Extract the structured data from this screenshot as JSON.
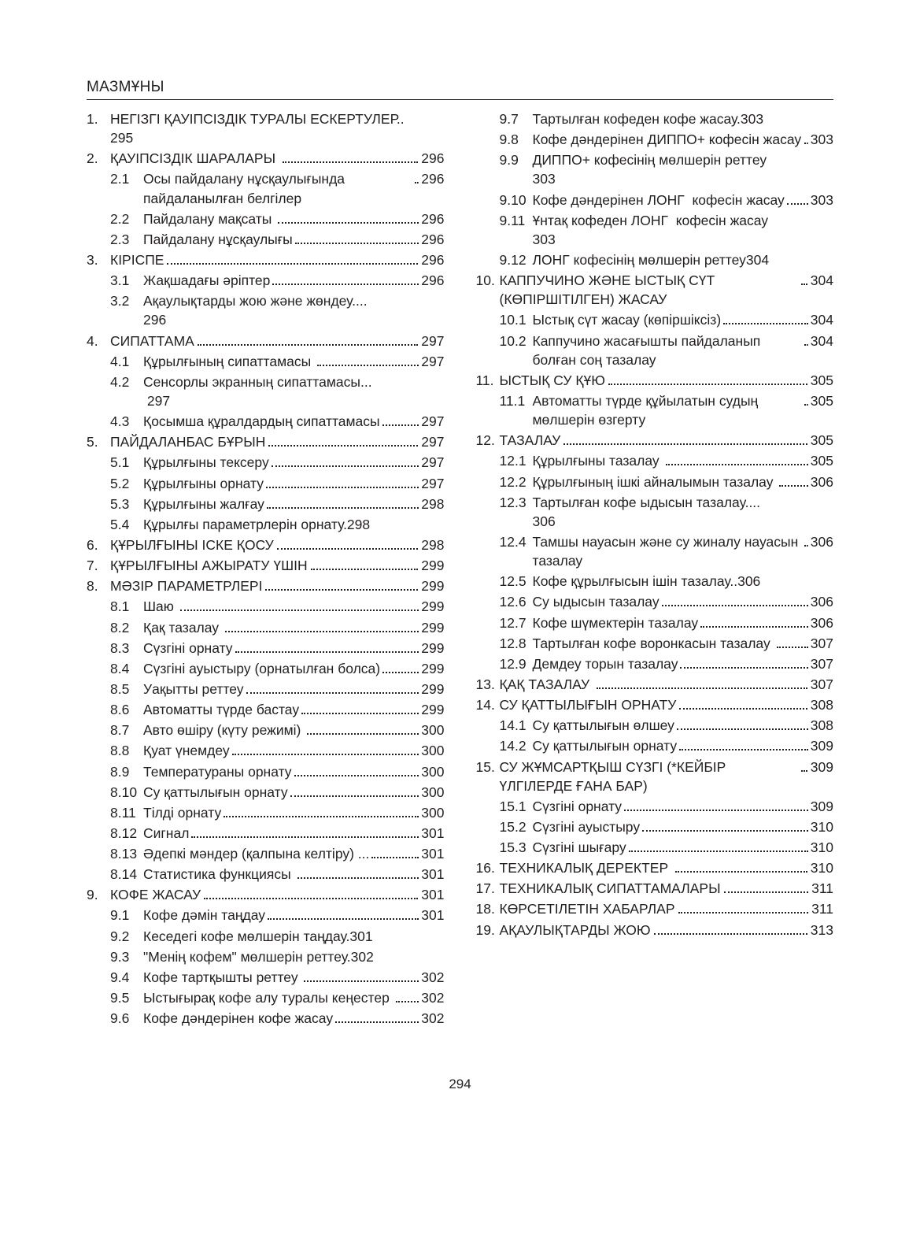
{
  "heading": "МАЗМҰНЫ",
  "pageNumber": "294",
  "columns": {
    "left": [
      {
        "type": "l1",
        "num": "1.",
        "label": "НЕГІЗГІ ҚАУІПСІЗДІК ТУРАЛЫ ЕСКЕРТУЛЕР..\n295",
        "page": "",
        "dots": false
      },
      {
        "type": "l1",
        "num": "2.",
        "label": "ҚАУІПСІЗДІК ШАРАЛАРЫ ",
        "page": " 296",
        "dots": true
      },
      {
        "type": "l2",
        "sub": "2.1",
        "label": "Осы пайдалану нұсқаулығында пайдаланылған белгілер",
        "page": "296",
        "dots": true
      },
      {
        "type": "l2",
        "sub": "2.2",
        "label": "Пайдалану мақсаты ",
        "page": "296",
        "dots": true
      },
      {
        "type": "l2",
        "sub": "2.3",
        "label": "Пайдалану нұсқаулығы",
        "page": "296",
        "dots": true
      },
      {
        "type": "l1",
        "num": "3.",
        "label": "КІРІСПЕ",
        "page": " 296",
        "dots": true
      },
      {
        "type": "l2",
        "sub": "3.1",
        "label": "Жақшадағы әріптер",
        "page": "296",
        "dots": true
      },
      {
        "type": "l2",
        "sub": "3.2",
        "label": "Ақаулықтарды жою және жөндеу....\n296",
        "page": "",
        "dots": false
      },
      {
        "type": "l1",
        "num": "4.",
        "label": "СИПАТТАМА",
        "page": " 297",
        "dots": true
      },
      {
        "type": "l2",
        "sub": "4.1",
        "label": "Құрылғының сипаттамасы ",
        "page": "297",
        "dots": true
      },
      {
        "type": "l2",
        "sub": "4.2",
        "label": "Сенсорлы экранның сипаттамасы...\n 297",
        "page": "",
        "dots": false
      },
      {
        "type": "l2",
        "sub": "4.3",
        "label": "Қосымша құралдардың сипаттамасы",
        "page": "297",
        "dots": true
      },
      {
        "type": "l1",
        "num": "5.",
        "label": "ПАЙДАЛАНБАС БҰРЫН",
        "page": " 297",
        "dots": true
      },
      {
        "type": "l2",
        "sub": "5.1",
        "label": "Құрылғыны тексеру",
        "page": "297",
        "dots": true
      },
      {
        "type": "l2",
        "sub": "5.2",
        "label": "Құрылғыны орнату",
        "page": "297",
        "dots": true
      },
      {
        "type": "l2",
        "sub": "5.3",
        "label": "Құрылғыны жалғау",
        "page": "298",
        "dots": true
      },
      {
        "type": "l2",
        "sub": "5.4",
        "label": "Құрылғы параметрлерін орнату.298",
        "page": "",
        "dots": false
      },
      {
        "type": "l1",
        "num": "6.",
        "label": "ҚҰРЫЛҒЫНЫ ІСКЕ ҚОСУ",
        "page": " 298",
        "dots": true
      },
      {
        "type": "l1",
        "num": "7.",
        "label": "ҚҰРЫЛҒЫНЫ АЖЫРАТУ ҮШІН",
        "page": " 299",
        "dots": true
      },
      {
        "type": "l1",
        "num": "8.",
        "label": "МӘЗІР ПАРАМЕТРЛЕРІ",
        "page": " 299",
        "dots": true
      },
      {
        "type": "l2",
        "sub": "8.1",
        "label": "Шаю ",
        "page": "299",
        "dots": true
      },
      {
        "type": "l2",
        "sub": "8.2",
        "label": "Қақ тазалау ",
        "page": "299",
        "dots": true
      },
      {
        "type": "l2",
        "sub": "8.3",
        "label": "Сүзгіні орнату",
        "page": "299",
        "dots": true
      },
      {
        "type": "l2",
        "sub": "8.4",
        "label": "Сүзгіні ауыстыру (орнатылған болса)",
        "page": "299",
        "dots": true
      },
      {
        "type": "l2",
        "sub": "8.5",
        "label": "Уақытты реттеу",
        "page": "299",
        "dots": true
      },
      {
        "type": "l2",
        "sub": "8.6",
        "label": "Автоматты түрде бастау",
        "page": "299",
        "dots": true
      },
      {
        "type": "l2",
        "sub": "8.7",
        "label": "Авто өшіру (күту режимі) ",
        "page": "300",
        "dots": true
      },
      {
        "type": "l2",
        "sub": "8.8",
        "label": "Қуат үнемдеу",
        "page": "300",
        "dots": true
      },
      {
        "type": "l2",
        "sub": "8.9",
        "label": "Температураны орнату",
        "page": "300",
        "dots": true
      },
      {
        "type": "l2",
        "sub": "8.10",
        "label": "Су қаттылығын орнату",
        "page": "300",
        "dots": true
      },
      {
        "type": "l2",
        "sub": "8.11",
        "label": "Тілді орнату",
        "page": "300",
        "dots": true
      },
      {
        "type": "l2",
        "sub": "8.12",
        "label": "Сигнал",
        "page": "301",
        "dots": true
      },
      {
        "type": "l2",
        "sub": "8.13",
        "label": "Әдепкі мәндер (қалпына келтіру) ...\n",
        "page": "301",
        "dots": true,
        "dotsOnlyLine": true
      },
      {
        "type": "l2",
        "sub": "8.14",
        "label": "Статистика функциясы ",
        "page": "301",
        "dots": true
      },
      {
        "type": "l1",
        "num": "9.",
        "label": "КОФЕ ЖАСАУ",
        "page": " 301",
        "dots": true
      },
      {
        "type": "l2",
        "sub": "9.1",
        "label": "Кофе дәмін таңдау",
        "page": "301",
        "dots": true
      },
      {
        "type": "l2",
        "sub": "9.2",
        "label": "Кеседегі кофе мөлшерін таңдау.301",
        "page": "",
        "dots": false
      },
      {
        "type": "l2",
        "sub": "9.3",
        "label": "\"Менің кофем\" мөлшерін реттеу.302",
        "page": "",
        "dots": false
      },
      {
        "type": "l2",
        "sub": "9.4",
        "label": "Кофе тартқышты реттеу ",
        "page": "302",
        "dots": true
      },
      {
        "type": "l2",
        "sub": "9.5",
        "label": "Ыстығырақ кофе алу туралы кеңестер ",
        "page": "302",
        "dots": true
      },
      {
        "type": "l2",
        "sub": "9.6",
        "label": "Кофе дәндерінен кофе жасау",
        "page": "302",
        "dots": true
      }
    ],
    "right": [
      {
        "type": "l2",
        "sub": "9.7",
        "label": "Тартылған кофеден кофе жасау.303",
        "page": "",
        "dots": false
      },
      {
        "type": "l2",
        "sub": "9.8",
        "label": "Кофе дәндерінен ДИППО+ кофесін жасау ",
        "page": "303",
        "dots": true
      },
      {
        "type": "l2",
        "sub": "9.9",
        "label": "ДИППО+ кофесінің мөлшерін реттеу\n303",
        "page": "",
        "dots": false
      },
      {
        "type": "l2",
        "sub": "9.10",
        "label": "Кофе дәндерінен ЛОНГ  кофесін жасау",
        "page": "303",
        "dots": true
      },
      {
        "type": "l2",
        "sub": "9.11",
        "label": "Ұнтақ кофеден ЛОНГ  кофесін жасау\n303",
        "page": "",
        "dots": false
      },
      {
        "type": "l2",
        "sub": "9.12",
        "label": "ЛОНГ кофесінің мөлшерін реттеу304",
        "page": "",
        "dots": false
      },
      {
        "type": "l1",
        "num": "10.",
        "label": "КАППУЧИНО ЖӘНЕ ЫСТЫҚ СҮТ (КӨПІРШІТІЛГЕН) ЖАСАУ",
        "page": " 304",
        "dots": true
      },
      {
        "type": "l2",
        "sub": "10.1",
        "label": "Ыстық сүт жасау (көпіршіксіз)",
        "page": "304",
        "dots": true
      },
      {
        "type": "l2",
        "sub": "10.2",
        "label": "Каппучино жасағышты пайдаланып болған соң тазалау",
        "page": "304",
        "dots": true
      },
      {
        "type": "l1",
        "num": "11.",
        "label": "ЫСТЫҚ СУ ҚҰЮ",
        "page": " 305",
        "dots": true
      },
      {
        "type": "l2",
        "sub": "11.1",
        "label": "Автоматты түрде құйылатын судың мөлшерін өзгерту",
        "page": "305",
        "dots": true
      },
      {
        "type": "l1",
        "num": "12.",
        "label": "ТАЗАЛАУ",
        "page": " 305",
        "dots": true
      },
      {
        "type": "l2",
        "sub": "12.1",
        "label": "Құрылғыны тазалау ",
        "page": "305",
        "dots": true
      },
      {
        "type": "l2",
        "sub": "12.2",
        "label": "Құрылғының ішкі айналымын тазалау ",
        "page": "306",
        "dots": true
      },
      {
        "type": "l2",
        "sub": "12.3",
        "label": "Тартылған кофе ыдысын тазалау....\n306",
        "page": "",
        "dots": false
      },
      {
        "type": "l2",
        "sub": "12.4",
        "label": "Тамшы науасын және су жиналу науасын тазалау ",
        "page": "306",
        "dots": true
      },
      {
        "type": "l2",
        "sub": "12.5",
        "label": "Кофе құрылғысын ішін тазалау..306",
        "page": "",
        "dots": false
      },
      {
        "type": "l2",
        "sub": "12.6",
        "label": "Су ыдысын тазалау",
        "page": "306",
        "dots": true
      },
      {
        "type": "l2",
        "sub": "12.7",
        "label": "Кофе шүмектерін тазалау",
        "page": "306",
        "dots": true
      },
      {
        "type": "l2",
        "sub": "12.8",
        "label": "Тартылған кофе воронкасын тазалау ",
        "page": "307",
        "dots": true
      },
      {
        "type": "l2",
        "sub": "12.9",
        "label": "Демдеу торын тазалау",
        "page": "307",
        "dots": true
      },
      {
        "type": "l1",
        "num": "13.",
        "label": "ҚАҚ ТАЗАЛАУ ",
        "page": " 307",
        "dots": true
      },
      {
        "type": "l1",
        "num": "14.",
        "label": "СУ ҚАТТЫЛЫҒЫН ОРНАТУ",
        "page": " 308",
        "dots": true
      },
      {
        "type": "l2",
        "sub": "14.1",
        "label": "Су қаттылығын өлшеу",
        "page": "308",
        "dots": true
      },
      {
        "type": "l2",
        "sub": "14.2",
        "label": "Су қаттылығын орнату",
        "page": "309",
        "dots": true
      },
      {
        "type": "l1",
        "num": "15.",
        "label": "СУ ЖҰМСАРТҚЫШ СҮЗГІ (*КЕЙБІР ҮЛГІЛЕРДЕ ҒАНА БАР)",
        "page": " 309",
        "dots": true
      },
      {
        "type": "l2",
        "sub": "15.1",
        "label": "Сүзгіні орнату",
        "page": "309",
        "dots": true
      },
      {
        "type": "l2",
        "sub": "15.2",
        "label": "Сүзгіні ауыстыру",
        "page": "310",
        "dots": true
      },
      {
        "type": "l2",
        "sub": "15.3",
        "label": "Сүзгіні шығару",
        "page": "310",
        "dots": true
      },
      {
        "type": "l1",
        "num": "16.",
        "label": "ТЕХНИКАЛЫҚ ДЕРЕКТЕР ",
        "page": " 310",
        "dots": true
      },
      {
        "type": "l1",
        "num": "17.",
        "label": "ТЕХНИКАЛЫҚ СИПАТТАМАЛАРЫ",
        "page": " 311",
        "dots": true
      },
      {
        "type": "l1",
        "num": "18.",
        "label": "КӨРСЕТІЛЕТІН ХАБАРЛАР",
        "page": " 311",
        "dots": true
      },
      {
        "type": "l1",
        "num": "19.",
        "label": "АҚАУЛЫҚТАРДЫ ЖОЮ",
        "page": " 313",
        "dots": true
      }
    ]
  }
}
